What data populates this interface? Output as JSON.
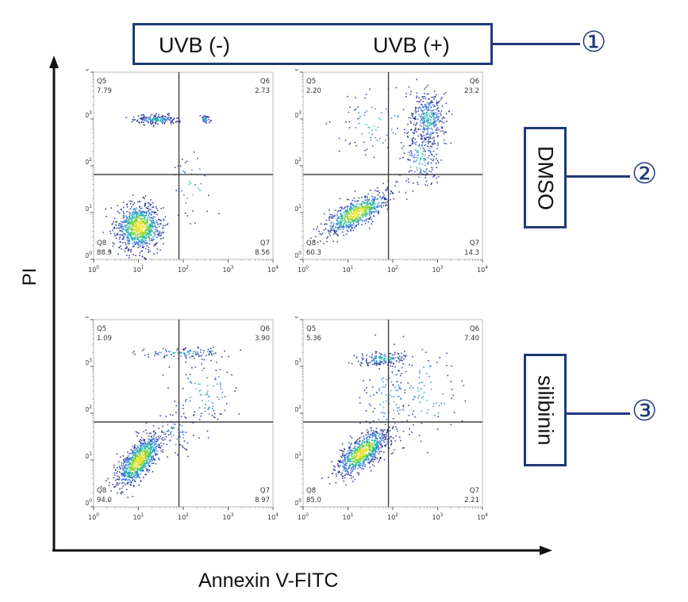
{
  "figure": {
    "y_label": "PI",
    "x_label": "Annexin V-FITC",
    "column_labels": [
      "UVB (-)",
      "UVB (+)"
    ],
    "row_labels": [
      "DMSO",
      "silibinin"
    ],
    "callouts": [
      "①",
      "②",
      "③"
    ],
    "colors": {
      "accent": "#1f3a78",
      "gate": "#333333",
      "density": [
        "#1b2a8f",
        "#2e6fd6",
        "#1fb3a8",
        "#7fd23c",
        "#e8e02a"
      ]
    }
  },
  "chart_data": [
    {
      "type": "scatter",
      "panel": "UVB (-) / DMSO",
      "xlabel": "Annexin V-FITC",
      "ylabel": "PI",
      "xscale": "log",
      "yscale": "log",
      "xlim": [
        1,
        10000
      ],
      "ylim": [
        1,
        10000
      ],
      "xticks": [
        "10",
        "10",
        "10",
        "10",
        "10"
      ],
      "yticks": [
        "10",
        "10",
        "10",
        "10",
        "10"
      ],
      "tick_exponents": [
        "0",
        "1",
        "2",
        "3",
        "4"
      ],
      "gate": {
        "x": 80,
        "y": 65
      },
      "quadrants": {
        "Q5": "7.79",
        "Q6": "2.73",
        "Q7": "8.56",
        "Q8": "88.9"
      },
      "populations": [
        {
          "x": 10,
          "y": 5,
          "sx": 0.25,
          "sy": 0.25,
          "n": 900
        },
        {
          "x": 25,
          "y": 1000,
          "sx": 0.25,
          "sy": 0.05,
          "n": 180
        },
        {
          "x": 300,
          "y": 1000,
          "sx": 0.05,
          "sy": 0.05,
          "n": 40
        },
        {
          "x": 150,
          "y": 40,
          "sx": 0.25,
          "sy": 0.4,
          "n": 40
        }
      ]
    },
    {
      "type": "scatter",
      "panel": "UVB (+) / DMSO",
      "xlabel": "Annexin V-FITC",
      "ylabel": "PI",
      "xscale": "log",
      "yscale": "log",
      "xlim": [
        1,
        10000
      ],
      "ylim": [
        1,
        10000
      ],
      "xticks": [
        "10",
        "10",
        "10",
        "10",
        "10"
      ],
      "yticks": [
        "10",
        "10",
        "10",
        "10",
        "10"
      ],
      "tick_exponents": [
        "0",
        "1",
        "2",
        "3",
        "4"
      ],
      "gate": {
        "x": 80,
        "y": 65
      },
      "quadrants": {
        "Q5": "2.20",
        "Q6": "23.2",
        "Q7": "14.3",
        "Q8": "60.3"
      },
      "populations": [
        {
          "x": 15,
          "y": 10,
          "sx": 0.35,
          "sy": 0.15,
          "n": 700,
          "tilt": 0.45
        },
        {
          "x": 600,
          "y": 1000,
          "sx": 0.2,
          "sy": 0.3,
          "n": 350
        },
        {
          "x": 400,
          "y": 150,
          "sx": 0.2,
          "sy": 0.35,
          "n": 180
        },
        {
          "x": 40,
          "y": 800,
          "sx": 0.45,
          "sy": 0.35,
          "n": 80
        }
      ]
    },
    {
      "type": "scatter",
      "panel": "UVB (-) / silibinin",
      "xlabel": "Annexin V-FITC",
      "ylabel": "PI",
      "xscale": "log",
      "yscale": "log",
      "xlim": [
        1,
        10000
      ],
      "ylim": [
        1,
        10000
      ],
      "xticks": [
        "10",
        "10",
        "10",
        "10",
        "10"
      ],
      "yticks": [
        "10",
        "10",
        "10",
        "10",
        "10"
      ],
      "tick_exponents": [
        "0",
        "1",
        "2",
        "3",
        "4"
      ],
      "gate": {
        "x": 80,
        "y": 65
      },
      "quadrants": {
        "Q5": "1.09",
        "Q6": "3.90",
        "Q7": "8.97",
        "Q8": "94.0"
      },
      "populations": [
        {
          "x": 10,
          "y": 10,
          "sx": 0.25,
          "sy": 0.2,
          "n": 900,
          "tilt": 0.8
        },
        {
          "x": 100,
          "y": 2000,
          "sx": 0.5,
          "sy": 0.06,
          "n": 110
        },
        {
          "x": 300,
          "y": 300,
          "sx": 0.35,
          "sy": 0.4,
          "n": 100
        },
        {
          "x": 60,
          "y": 40,
          "sx": 0.2,
          "sy": 0.25,
          "n": 60
        }
      ]
    },
    {
      "type": "scatter",
      "panel": "UVB (+) / silibinin",
      "xlabel": "Annexin V-FITC",
      "ylabel": "PI",
      "xscale": "log",
      "yscale": "log",
      "xlim": [
        1,
        10000
      ],
      "ylim": [
        1,
        10000
      ],
      "xticks": [
        "10",
        "10",
        "10",
        "10",
        "10"
      ],
      "yticks": [
        "10",
        "10",
        "10",
        "10",
        "10"
      ],
      "tick_exponents": [
        "0",
        "1",
        "2",
        "3",
        "4"
      ],
      "gate": {
        "x": 80,
        "y": 65
      },
      "quadrants": {
        "Q5": "5.36",
        "Q6": "7.40",
        "Q7": "2.21",
        "Q8": "85.0"
      },
      "populations": [
        {
          "x": 20,
          "y": 15,
          "sx": 0.28,
          "sy": 0.18,
          "n": 800,
          "tilt": 0.6
        },
        {
          "x": 60,
          "y": 1500,
          "sx": 0.3,
          "sy": 0.08,
          "n": 150
        },
        {
          "x": 80,
          "y": 200,
          "sx": 0.25,
          "sy": 0.55,
          "n": 130
        },
        {
          "x": 600,
          "y": 300,
          "sx": 0.35,
          "sy": 0.5,
          "n": 80
        }
      ]
    }
  ]
}
